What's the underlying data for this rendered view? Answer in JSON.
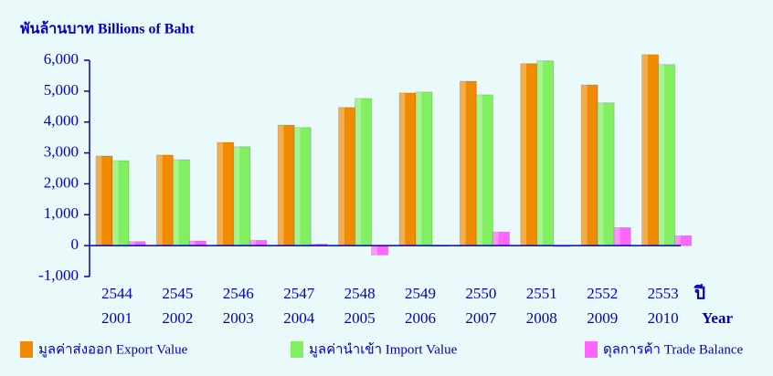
{
  "chart_data": {
    "type": "bar",
    "title": "พันล้านบาท  Billions of Baht",
    "x_label_th": "ปี",
    "x_label": "Year",
    "categories_be": [
      "2544",
      "2545",
      "2546",
      "2547",
      "2548",
      "2549",
      "2550",
      "2551",
      "2552",
      "2553"
    ],
    "categories": [
      "2001",
      "2002",
      "2003",
      "2004",
      "2005",
      "2006",
      "2007",
      "2008",
      "2009",
      "2010"
    ],
    "series": [
      {
        "name": "มูลค่าส่งออก Export Value",
        "color": "#f08a00",
        "values": [
          2900,
          2930,
          3340,
          3900,
          4470,
          4940,
          5320,
          5890,
          5200,
          6180
        ]
      },
      {
        "name": "มูลค่านำเข้า Import Value",
        "color": "#80f060",
        "values": [
          2750,
          2780,
          3200,
          3820,
          4760,
          4970,
          4880,
          5980,
          4620,
          5860
        ]
      },
      {
        "name": "ดุลการค้า Trade Balance",
        "color": "#ff66ff",
        "values": [
          130,
          150,
          170,
          50,
          -300,
          10,
          440,
          -10,
          580,
          320
        ]
      }
    ],
    "ylim": [
      -1000,
      6000
    ],
    "yticks": [
      {
        "value": -1000,
        "label": "-1,000"
      },
      0,
      {
        "value": 1000,
        "label": "1,000"
      },
      {
        "value": 2000,
        "label": "2,000"
      },
      {
        "value": 3000,
        "label": "3,000"
      },
      {
        "value": 4000,
        "label": "4,000"
      },
      {
        "value": 5000,
        "label": "5,000"
      },
      {
        "value": 6000,
        "label": "6,000"
      }
    ]
  }
}
